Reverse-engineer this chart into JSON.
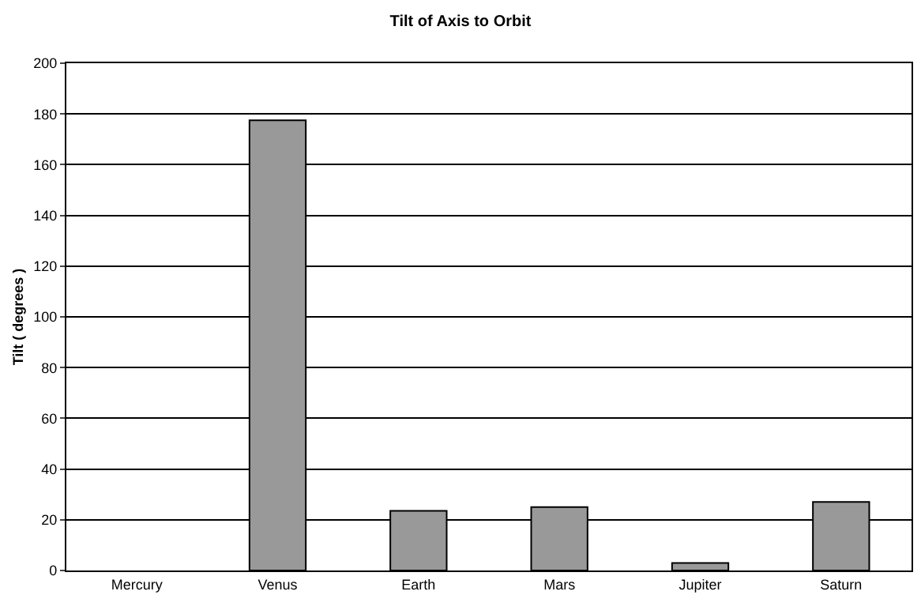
{
  "chart_data": {
    "type": "bar",
    "title": "Tilt of Axis to Orbit",
    "ylabel": "Tilt ( degrees )",
    "categories": [
      "Mercury",
      "Venus",
      "Earth",
      "Mars",
      "Jupiter",
      "Saturn"
    ],
    "values": [
      null,
      177.5,
      23.5,
      25,
      3,
      27
    ],
    "color": "#999999",
    "ylim": [
      0,
      200
    ],
    "yticks": [
      0,
      20,
      40,
      60,
      80,
      100,
      120,
      140,
      160,
      180,
      200
    ],
    "grid": "y",
    "legend": false
  }
}
